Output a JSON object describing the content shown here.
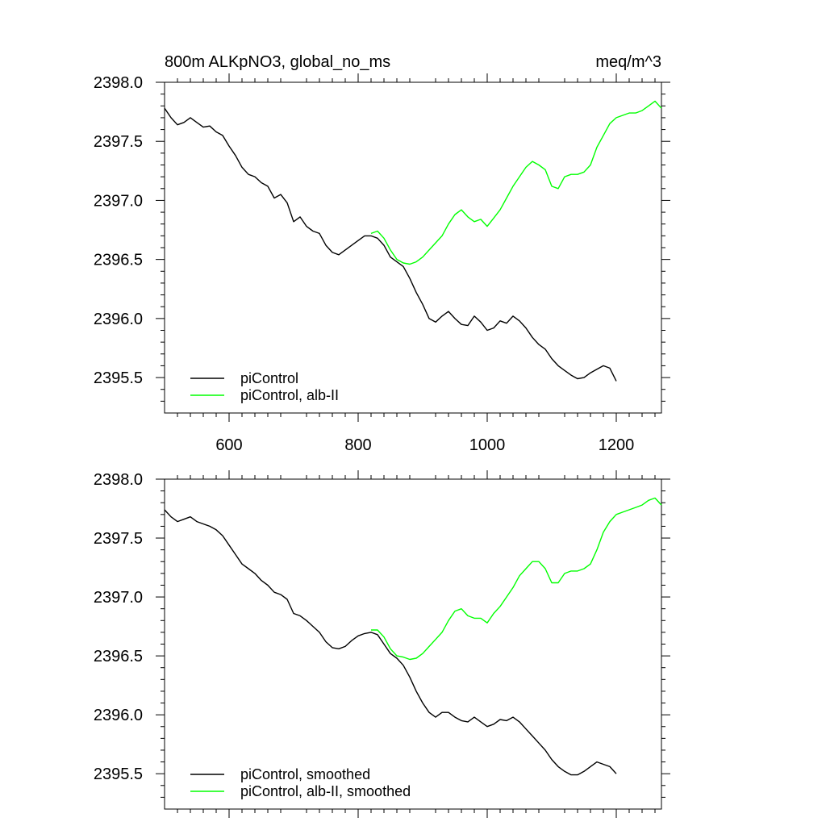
{
  "figure": {
    "title_left": "800m ALKpNO3, global_no_ms",
    "title_right": "meq/m^3"
  },
  "colors": {
    "piControl": "#000000",
    "alb_II": "#00ff00"
  },
  "chart_data": [
    {
      "type": "line",
      "panel": "top",
      "title": "800m ALKpNO3, global_no_ms",
      "units": "meq/m^3",
      "xlim": [
        500,
        1270
      ],
      "ylim": [
        2395.2,
        2398.0
      ],
      "x_ticks": [
        600,
        800,
        1000,
        1200
      ],
      "x_tick_labels": [
        "600",
        "800",
        "1000",
        "1200"
      ],
      "y_ticks": [
        2395.5,
        2396.0,
        2396.5,
        2397.0,
        2397.5,
        2398.0
      ],
      "y_tick_labels": [
        "2395.5",
        "2396.0",
        "2396.5",
        "2397.0",
        "2397.5",
        "2398.0"
      ],
      "grid": false,
      "legend_position": "bottom-left",
      "legend": [
        "piControl",
        "piControl, alb-II"
      ],
      "series": [
        {
          "name": "piControl",
          "color": "#000000",
          "x": [
            500,
            510,
            520,
            530,
            540,
            550,
            560,
            570,
            580,
            590,
            600,
            610,
            620,
            630,
            640,
            650,
            660,
            670,
            680,
            690,
            700,
            710,
            720,
            730,
            740,
            750,
            760,
            770,
            780,
            790,
            800,
            810,
            820,
            830,
            840,
            850,
            860,
            870,
            880,
            890,
            900,
            910,
            920,
            930,
            940,
            950,
            960,
            970,
            980,
            990,
            1000,
            1010,
            1020,
            1030,
            1040,
            1050,
            1060,
            1070,
            1080,
            1090,
            1100,
            1110,
            1120,
            1130,
            1140,
            1150,
            1160,
            1170,
            1180,
            1190,
            1200
          ],
          "y": [
            2397.78,
            2397.7,
            2397.64,
            2397.66,
            2397.7,
            2397.66,
            2397.62,
            2397.63,
            2397.58,
            2397.55,
            2397.46,
            2397.38,
            2397.28,
            2397.22,
            2397.2,
            2397.15,
            2397.12,
            2397.02,
            2397.05,
            2396.98,
            2396.82,
            2396.86,
            2396.78,
            2396.74,
            2396.72,
            2396.62,
            2396.56,
            2396.54,
            2396.58,
            2396.62,
            2396.66,
            2396.7,
            2396.7,
            2396.68,
            2396.62,
            2396.52,
            2396.48,
            2396.44,
            2396.34,
            2396.22,
            2396.12,
            2396.0,
            2395.97,
            2396.02,
            2396.06,
            2396.0,
            2395.95,
            2395.94,
            2396.02,
            2395.97,
            2395.9,
            2395.92,
            2395.98,
            2395.96,
            2396.02,
            2395.98,
            2395.92,
            2395.84,
            2395.78,
            2395.74,
            2395.66,
            2395.6,
            2395.56,
            2395.52,
            2395.49,
            2395.5,
            2395.54,
            2395.57,
            2395.6,
            2395.58,
            2395.47
          ]
        },
        {
          "name": "piControl, alb-II",
          "color": "#00ff00",
          "x": [
            820,
            830,
            840,
            850,
            860,
            870,
            880,
            890,
            900,
            910,
            920,
            930,
            940,
            950,
            960,
            970,
            980,
            990,
            1000,
            1010,
            1020,
            1030,
            1040,
            1050,
            1060,
            1070,
            1080,
            1090,
            1100,
            1110,
            1120,
            1130,
            1140,
            1150,
            1160,
            1170,
            1180,
            1190,
            1200,
            1210,
            1220,
            1230,
            1240,
            1250,
            1260,
            1270
          ],
          "y": [
            2396.72,
            2396.74,
            2396.68,
            2396.58,
            2396.5,
            2396.47,
            2396.46,
            2396.48,
            2396.52,
            2396.58,
            2396.64,
            2396.7,
            2396.8,
            2396.88,
            2396.92,
            2396.86,
            2396.82,
            2396.84,
            2396.78,
            2396.85,
            2396.92,
            2397.02,
            2397.12,
            2397.2,
            2397.28,
            2397.33,
            2397.3,
            2397.26,
            2397.12,
            2397.1,
            2397.2,
            2397.22,
            2397.22,
            2397.24,
            2397.3,
            2397.45,
            2397.55,
            2397.65,
            2397.7,
            2397.72,
            2397.74,
            2397.74,
            2397.76,
            2397.8,
            2397.84,
            2397.78
          ]
        }
      ]
    },
    {
      "type": "line",
      "panel": "bottom",
      "xlim": [
        500,
        1270
      ],
      "ylim": [
        2395.2,
        2398.0
      ],
      "x_ticks": [
        600,
        800,
        1000,
        1200
      ],
      "y_ticks": [
        2395.5,
        2396.0,
        2396.5,
        2397.0,
        2397.5,
        2398.0
      ],
      "y_tick_labels": [
        "2395.5",
        "2396.0",
        "2396.5",
        "2397.0",
        "2397.5",
        "2398.0"
      ],
      "grid": false,
      "legend_position": "bottom-left",
      "legend": [
        "piControl, smoothed",
        "piControl, alb-II, smoothed"
      ],
      "series": [
        {
          "name": "piControl, smoothed",
          "color": "#000000",
          "x": [
            500,
            510,
            520,
            530,
            540,
            550,
            560,
            570,
            580,
            590,
            600,
            610,
            620,
            630,
            640,
            650,
            660,
            670,
            680,
            690,
            700,
            710,
            720,
            730,
            740,
            750,
            760,
            770,
            780,
            790,
            800,
            810,
            820,
            830,
            840,
            850,
            860,
            870,
            880,
            890,
            900,
            910,
            920,
            930,
            940,
            950,
            960,
            970,
            980,
            990,
            1000,
            1010,
            1020,
            1030,
            1040,
            1050,
            1060,
            1070,
            1080,
            1090,
            1100,
            1110,
            1120,
            1130,
            1140,
            1150,
            1160,
            1170,
            1180,
            1190,
            1200
          ],
          "y": [
            2397.74,
            2397.68,
            2397.64,
            2397.66,
            2397.68,
            2397.64,
            2397.62,
            2397.6,
            2397.57,
            2397.52,
            2397.44,
            2397.36,
            2397.28,
            2397.24,
            2397.2,
            2397.14,
            2397.1,
            2397.04,
            2397.02,
            2396.98,
            2396.86,
            2396.84,
            2396.8,
            2396.75,
            2396.7,
            2396.62,
            2396.57,
            2396.56,
            2396.58,
            2396.63,
            2396.67,
            2396.69,
            2396.7,
            2396.68,
            2396.6,
            2396.52,
            2396.48,
            2396.42,
            2396.32,
            2396.2,
            2396.1,
            2396.02,
            2395.98,
            2396.02,
            2396.02,
            2395.98,
            2395.95,
            2395.94,
            2395.98,
            2395.94,
            2395.9,
            2395.92,
            2395.96,
            2395.95,
            2395.98,
            2395.94,
            2395.88,
            2395.82,
            2395.76,
            2395.7,
            2395.62,
            2395.56,
            2395.52,
            2395.49,
            2395.49,
            2395.52,
            2395.56,
            2395.6,
            2395.58,
            2395.56,
            2395.5
          ]
        },
        {
          "name": "piControl, alb-II, smoothed",
          "color": "#00ff00",
          "x": [
            820,
            830,
            840,
            850,
            860,
            870,
            880,
            890,
            900,
            910,
            920,
            930,
            940,
            950,
            960,
            970,
            980,
            990,
            1000,
            1010,
            1020,
            1030,
            1040,
            1050,
            1060,
            1070,
            1080,
            1090,
            1100,
            1110,
            1120,
            1130,
            1140,
            1150,
            1160,
            1170,
            1180,
            1190,
            1200,
            1210,
            1220,
            1230,
            1240,
            1250,
            1260,
            1270
          ],
          "y": [
            2396.72,
            2396.72,
            2396.66,
            2396.56,
            2396.5,
            2396.49,
            2396.47,
            2396.48,
            2396.52,
            2396.58,
            2396.64,
            2396.7,
            2396.8,
            2396.88,
            2396.9,
            2396.84,
            2396.82,
            2396.82,
            2396.78,
            2396.86,
            2396.92,
            2397.0,
            2397.08,
            2397.18,
            2397.24,
            2397.3,
            2397.3,
            2397.24,
            2397.12,
            2397.12,
            2397.2,
            2397.22,
            2397.22,
            2397.24,
            2397.28,
            2397.4,
            2397.55,
            2397.64,
            2397.7,
            2397.72,
            2397.74,
            2397.76,
            2397.78,
            2397.82,
            2397.84,
            2397.78
          ]
        }
      ]
    }
  ]
}
